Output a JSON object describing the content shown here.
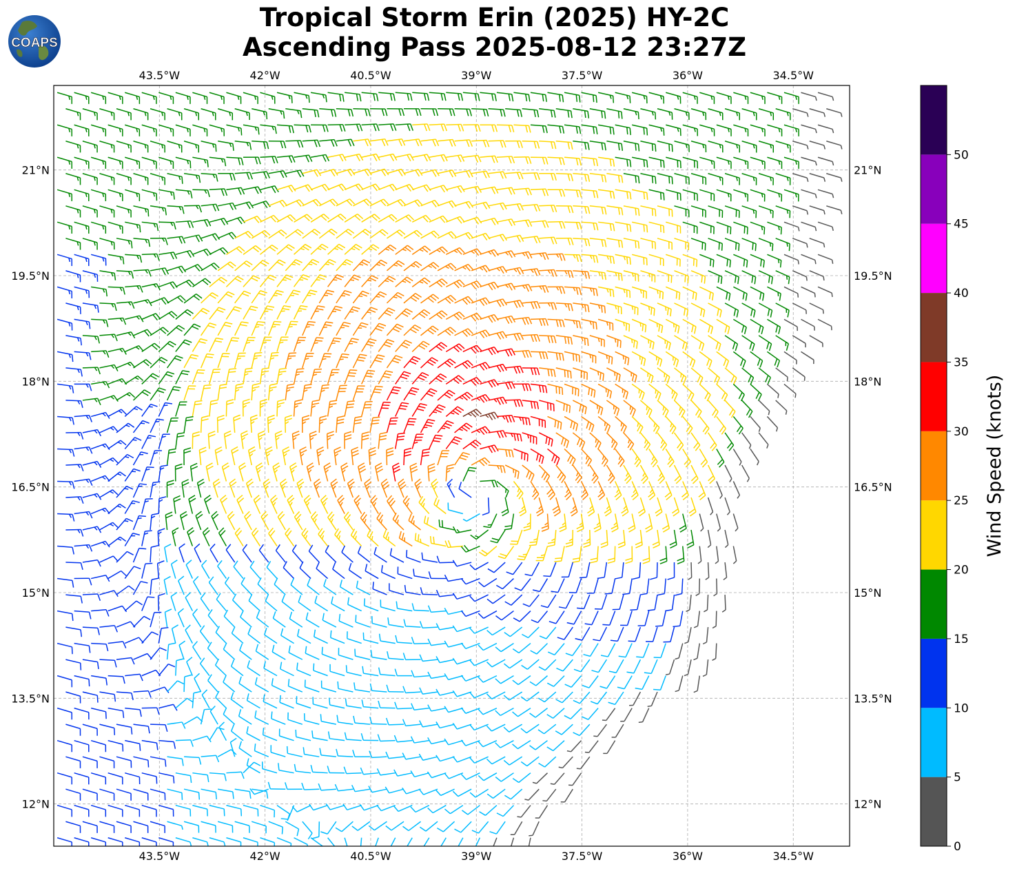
{
  "title": {
    "line1": "Tropical Storm Erin (2025) HY-2C",
    "line2": "Ascending Pass 2025-08-12 23:27Z"
  },
  "logo": {
    "text": "COAPS",
    "icon": "globe-icon"
  },
  "map": {
    "lon_range": [
      -45.0,
      -33.7
    ],
    "lat_range": [
      11.4,
      22.2
    ],
    "lon_ticks": [
      {
        "value": -43.5,
        "label": "43.5°W"
      },
      {
        "value": -42.0,
        "label": "42°W"
      },
      {
        "value": -40.5,
        "label": "40.5°W"
      },
      {
        "value": -39.0,
        "label": "39°W"
      },
      {
        "value": -37.5,
        "label": "37.5°W"
      },
      {
        "value": -36.0,
        "label": "36°W"
      },
      {
        "value": -34.5,
        "label": "34.5°W"
      }
    ],
    "lat_ticks": [
      {
        "value": 21.0,
        "label": "21°N"
      },
      {
        "value": 19.5,
        "label": "19.5°N"
      },
      {
        "value": 18.0,
        "label": "18°N"
      },
      {
        "value": 16.5,
        "label": "16.5°N"
      },
      {
        "value": 15.0,
        "label": "15°N"
      },
      {
        "value": 13.5,
        "label": "13.5°N"
      },
      {
        "value": 12.0,
        "label": "12°N"
      }
    ],
    "grid": "dashed",
    "storm_center": {
      "lon": -39.0,
      "lat": 16.4
    },
    "swath_southeast_edge": [
      {
        "lon": -34.0,
        "lat": 21.2
      },
      {
        "lon": -34.1,
        "lat": 18.6
      },
      {
        "lon": -34.8,
        "lat": 17.3
      },
      {
        "lon": -35.3,
        "lat": 16.2
      },
      {
        "lon": -35.4,
        "lat": 14.8
      },
      {
        "lon": -35.7,
        "lat": 13.8
      },
      {
        "lon": -36.4,
        "lat": 13.5
      },
      {
        "lon": -37.3,
        "lat": 12.6
      },
      {
        "lon": -38.1,
        "lat": 11.6
      },
      {
        "lon": -38.4,
        "lat": 11.4
      }
    ]
  },
  "colorbar": {
    "label": "Wind Speed (knots)",
    "ticks": [
      "0",
      "5",
      "10",
      "15",
      "20",
      "25",
      "30",
      "35",
      "40",
      "45",
      "50"
    ],
    "bins": [
      {
        "min": 0,
        "max": 5,
        "color": "#555555"
      },
      {
        "min": 5,
        "max": 10,
        "color": "#00bbff"
      },
      {
        "min": 10,
        "max": 15,
        "color": "#0033ee"
      },
      {
        "min": 15,
        "max": 20,
        "color": "#008800"
      },
      {
        "min": 20,
        "max": 25,
        "color": "#ffd700"
      },
      {
        "min": 25,
        "max": 30,
        "color": "#ff8800"
      },
      {
        "min": 30,
        "max": 35,
        "color": "#ff0000"
      },
      {
        "min": 35,
        "max": 40,
        "color": "#7f3a28"
      },
      {
        "min": 40,
        "max": 45,
        "color": "#ff00ff"
      },
      {
        "min": 45,
        "max": 50,
        "color": "#8800bb"
      },
      {
        "min": 50,
        "max": 55,
        "color": "#2a0055"
      }
    ]
  }
}
